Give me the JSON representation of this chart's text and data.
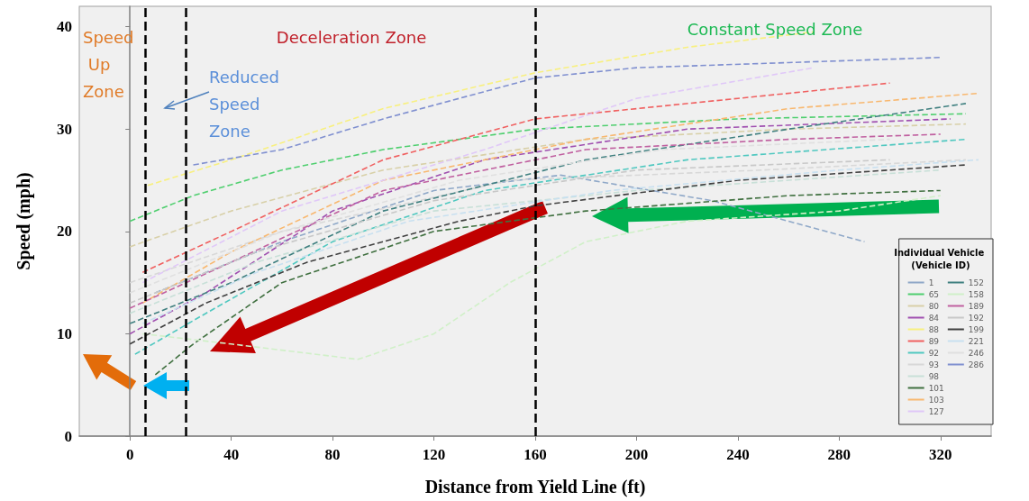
{
  "chart_data": {
    "type": "line",
    "xlabel": "Distance from Yield Line (ft)",
    "ylabel": "Speed (mph)",
    "legend_title": "Individual Vehicle (Vehicle ID)",
    "xlim": [
      -20,
      340
    ],
    "xticks": [
      0,
      40,
      80,
      120,
      160,
      200,
      240,
      280,
      320
    ],
    "ylim": [
      0,
      42
    ],
    "yticks": [
      0,
      10,
      20,
      30,
      40
    ],
    "grid": false,
    "legend": "bottom right",
    "marker": "none",
    "line_style": "dashed",
    "ref_lines": [
      {
        "axis": "x",
        "value": 6,
        "color": "#000000",
        "line_style": "dashed"
      },
      {
        "axis": "x",
        "value": 22,
        "color": "#000000",
        "line_style": "dashed"
      },
      {
        "axis": "x",
        "value": 160,
        "color": "#000000",
        "line_style": "dashed"
      }
    ],
    "annotations": [
      "Speed Up Zone",
      "Reduced Speed Zone",
      "Deceleration Zone",
      "Constant Speed Zone"
    ],
    "series": [
      {
        "name": "1",
        "color": "#8fa8c8",
        "x": [
          10,
          60,
          120,
          170,
          230,
          290
        ],
        "values": [
          14,
          19,
          24,
          25.5,
          23,
          19
        ]
      },
      {
        "name": "65",
        "color": "#4fcf6f",
        "x": [
          0,
          25,
          60,
          100,
          160,
          240,
          330
        ],
        "values": [
          21,
          23.5,
          26,
          28,
          30,
          31,
          31.5
        ]
      },
      {
        "name": "80",
        "color": "#d8d0a8",
        "x": [
          0,
          40,
          100,
          180,
          260,
          330
        ],
        "values": [
          18.5,
          22,
          26,
          29,
          30,
          30.5
        ]
      },
      {
        "name": "84",
        "color": "#a050b0",
        "x": [
          0,
          30,
          80,
          140,
          220,
          324
        ],
        "values": [
          10,
          14,
          22,
          27,
          30,
          31
        ]
      },
      {
        "name": "88",
        "color": "#f8f080",
        "x": [
          7,
          40,
          100,
          160,
          220,
          270
        ],
        "values": [
          24.5,
          27,
          32,
          35.5,
          38,
          39.5
        ]
      },
      {
        "name": "89",
        "color": "#f06060",
        "x": [
          5,
          40,
          100,
          160,
          240,
          300
        ],
        "values": [
          16,
          20,
          27,
          31,
          33,
          34.5
        ]
      },
      {
        "name": "92",
        "color": "#50c8c0",
        "x": [
          2,
          30,
          80,
          140,
          220,
          330
        ],
        "values": [
          8,
          12,
          19,
          24,
          27,
          29
        ]
      },
      {
        "name": "93",
        "color": "#d8d8d8",
        "x": [
          0,
          60,
          150,
          250,
          330
        ],
        "values": [
          15,
          20,
          25,
          26,
          27
        ]
      },
      {
        "name": "98",
        "color": "#c8e0d8",
        "x": [
          0,
          50,
          120,
          200,
          320
        ],
        "values": [
          12,
          17,
          22,
          24,
          26
        ]
      },
      {
        "name": "101",
        "color": "#407040",
        "x": [
          10,
          25,
          60,
          120,
          180,
          260,
          320
        ],
        "values": [
          6,
          9,
          15,
          20,
          22,
          23.5,
          24
        ]
      },
      {
        "name": "103",
        "color": "#f8b870",
        "x": [
          5,
          40,
          100,
          180,
          260,
          335
        ],
        "values": [
          13,
          18,
          25,
          29,
          32,
          33.5
        ]
      },
      {
        "name": "127",
        "color": "#e0c8f8",
        "x": [
          5,
          60,
          140,
          200,
          270
        ],
        "values": [
          15,
          22,
          28,
          33,
          36
        ]
      },
      {
        "name": "152",
        "color": "#408080",
        "x": [
          0,
          40,
          100,
          180,
          260,
          330
        ],
        "values": [
          11,
          15,
          22,
          27,
          30,
          32.5
        ]
      },
      {
        "name": "158",
        "color": "#d0f0c8",
        "x": [
          5,
          40,
          90,
          120,
          150,
          180,
          220,
          280,
          320
        ],
        "values": [
          10,
          9,
          7.5,
          10,
          15,
          19,
          21,
          22,
          23.5
        ]
      },
      {
        "name": "189",
        "color": "#c060a0",
        "x": [
          0,
          40,
          100,
          180,
          260,
          320
        ],
        "values": [
          12.5,
          17,
          24,
          28,
          29,
          29.5
        ]
      },
      {
        "name": "192",
        "color": "#c8c8c8",
        "x": [
          0,
          50,
          120,
          200,
          300
        ],
        "values": [
          13,
          18,
          23,
          26,
          27
        ]
      },
      {
        "name": "199",
        "color": "#404040",
        "x": [
          0,
          30,
          70,
          130,
          160,
          240,
          330
        ],
        "values": [
          9,
          13,
          17,
          21,
          22.5,
          25,
          26.5
        ]
      },
      {
        "name": "221",
        "color": "#c8e0f0",
        "x": [
          5,
          50,
          110,
          190,
          280,
          335
        ],
        "values": [
          11,
          16,
          21,
          24,
          26,
          27
        ]
      },
      {
        "name": "246",
        "color": "#e0e0e0",
        "x": [
          0,
          60,
          130,
          210,
          300
        ],
        "values": [
          14,
          20,
          25,
          28,
          29
        ]
      },
      {
        "name": "286",
        "color": "#8090d0",
        "x": [
          25,
          60,
          100,
          160,
          200,
          260,
          320
        ],
        "values": [
          26.5,
          28,
          31,
          35,
          36,
          36.5,
          37
        ]
      }
    ]
  }
}
